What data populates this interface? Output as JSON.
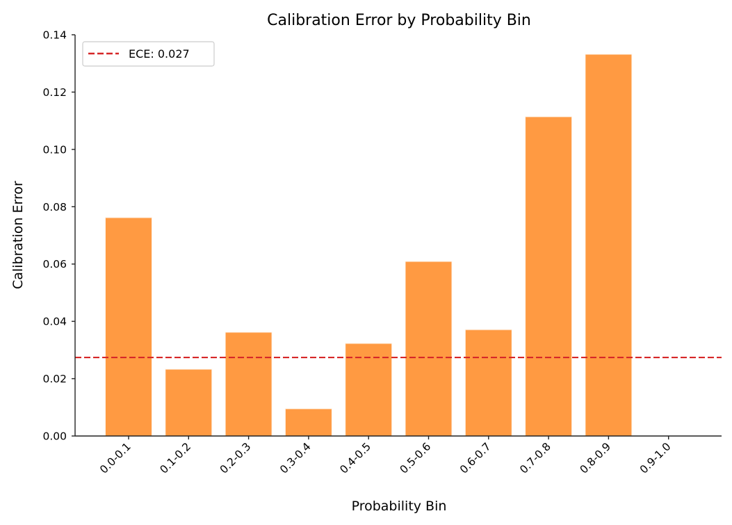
{
  "chart_data": {
    "type": "bar",
    "title": "Calibration Error by Probability Bin",
    "xlabel": "Probability Bin",
    "ylabel": "Calibration Error",
    "categories": [
      "0.0-0.1",
      "0.1-0.2",
      "0.2-0.3",
      "0.3-0.4",
      "0.4-0.5",
      "0.5-0.6",
      "0.6-0.7",
      "0.7-0.8",
      "0.8-0.9",
      "0.9-1.0"
    ],
    "values": [
      0.0762,
      0.0233,
      0.0362,
      0.0095,
      0.0323,
      0.0609,
      0.0371,
      0.1114,
      0.1332,
      0.0
    ],
    "ylim": [
      0,
      0.14
    ],
    "yticks": [
      0.0,
      0.02,
      0.04,
      0.06,
      0.08,
      0.1,
      0.12,
      0.14
    ],
    "ytick_labels": [
      "0.00",
      "0.02",
      "0.04",
      "0.06",
      "0.08",
      "0.10",
      "0.12",
      "0.14"
    ],
    "grid": false,
    "bar_color": "#ff9a42",
    "reference_line": {
      "label": "ECE: 0.027",
      "value": 0.0274,
      "color": "#d62728",
      "style": "dashed"
    },
    "legend": {
      "position": "upper left",
      "entries": [
        "ECE: 0.027"
      ]
    }
  }
}
